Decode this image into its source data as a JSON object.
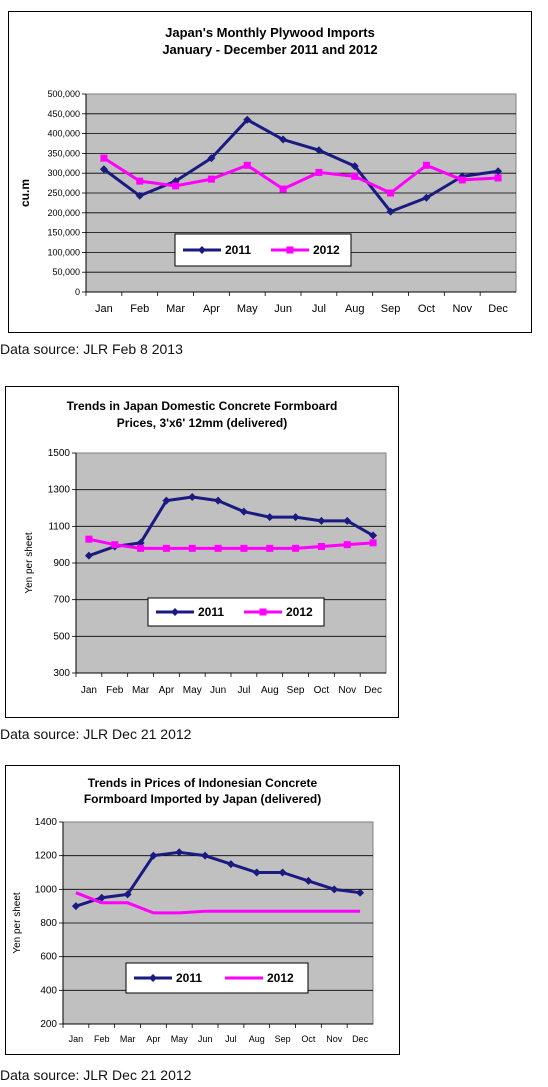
{
  "chart_data": [
    {
      "type": "line",
      "title": "Japan's Monthly Plywood Imports",
      "subtitle": "January - December 2011 and 2012",
      "xlabel": "",
      "ylabel": "cu.m",
      "categories": [
        "Jan",
        "Feb",
        "Mar",
        "Apr",
        "May",
        "Jun",
        "Jul",
        "Aug",
        "Sep",
        "Oct",
        "Nov",
        "Dec"
      ],
      "yticks": [
        "0",
        "50,000",
        "100,000",
        "150,000",
        "200,000",
        "250,000",
        "300,000",
        "350,000",
        "400,000",
        "450,000",
        "500,000"
      ],
      "ylim": [
        0,
        500000
      ],
      "grid": true,
      "legend": "inside-bottom-center",
      "series": [
        {
          "name": "2011",
          "color": "#1a1a80",
          "marker": "diamond",
          "values": [
            310000,
            243000,
            280000,
            338000,
            435000,
            385000,
            358000,
            318000,
            203000,
            238000,
            292000,
            305000
          ]
        },
        {
          "name": "2012",
          "color": "#ff00ff",
          "marker": "square",
          "values": [
            338000,
            280000,
            268000,
            285000,
            320000,
            260000,
            302000,
            292000,
            250000,
            320000,
            283000,
            288000
          ]
        }
      ],
      "source": "Data source: JLR Feb 8 2013"
    },
    {
      "type": "line",
      "title": "Trends in Japan Domestic Concrete Formboard",
      "subtitle": "Prices, 3'x6' 12mm (delivered)",
      "xlabel": "",
      "ylabel": "Yen per sheet",
      "categories": [
        "Jan",
        "Feb",
        "Mar",
        "Apr",
        "May",
        "Jun",
        "Jul",
        "Aug",
        "Sep",
        "Oct",
        "Nov",
        "Dec"
      ],
      "yticks": [
        "300",
        "500",
        "700",
        "900",
        "1100",
        "1300",
        "1500"
      ],
      "ylim": [
        300,
        1500
      ],
      "grid": true,
      "legend": "inside-bottom-center",
      "series": [
        {
          "name": "2011",
          "color": "#1a1a80",
          "marker": "diamond",
          "values": [
            940,
            990,
            1010,
            1240,
            1260,
            1240,
            1180,
            1150,
            1150,
            1130,
            1130,
            1050
          ]
        },
        {
          "name": "2012",
          "color": "#ff00ff",
          "marker": "square",
          "values": [
            1030,
            1000,
            980,
            980,
            980,
            980,
            980,
            980,
            980,
            990,
            1000,
            1010
          ]
        }
      ],
      "source": "Data source: JLR Dec 21 2012"
    },
    {
      "type": "line",
      "title": "Trends in Prices of Indonesian Concrete",
      "subtitle": "Formboard Imported by Japan (delivered)",
      "xlabel": "",
      "ylabel": "Yen per sheet",
      "categories": [
        "Jan",
        "Feb",
        "Mar",
        "Apr",
        "May",
        "Jun",
        "Jul",
        "Aug",
        "Sep",
        "Oct",
        "Nov",
        "Dec"
      ],
      "yticks": [
        "200",
        "400",
        "600",
        "800",
        "1000",
        "1200",
        "1400"
      ],
      "ylim": [
        200,
        1400
      ],
      "grid": true,
      "legend": "inside-bottom-center",
      "series": [
        {
          "name": "2011",
          "color": "#1a1a80",
          "marker": "diamond",
          "values": [
            900,
            950,
            970,
            1200,
            1220,
            1200,
            1150,
            1100,
            1100,
            1050,
            1000,
            980
          ]
        },
        {
          "name": "2012",
          "color": "#ff00ff",
          "marker": "none",
          "values": [
            980,
            920,
            920,
            860,
            860,
            870,
            870,
            870,
            870,
            870,
            870,
            870
          ]
        }
      ],
      "source": "Data source: JLR Dec 21 2012"
    }
  ]
}
